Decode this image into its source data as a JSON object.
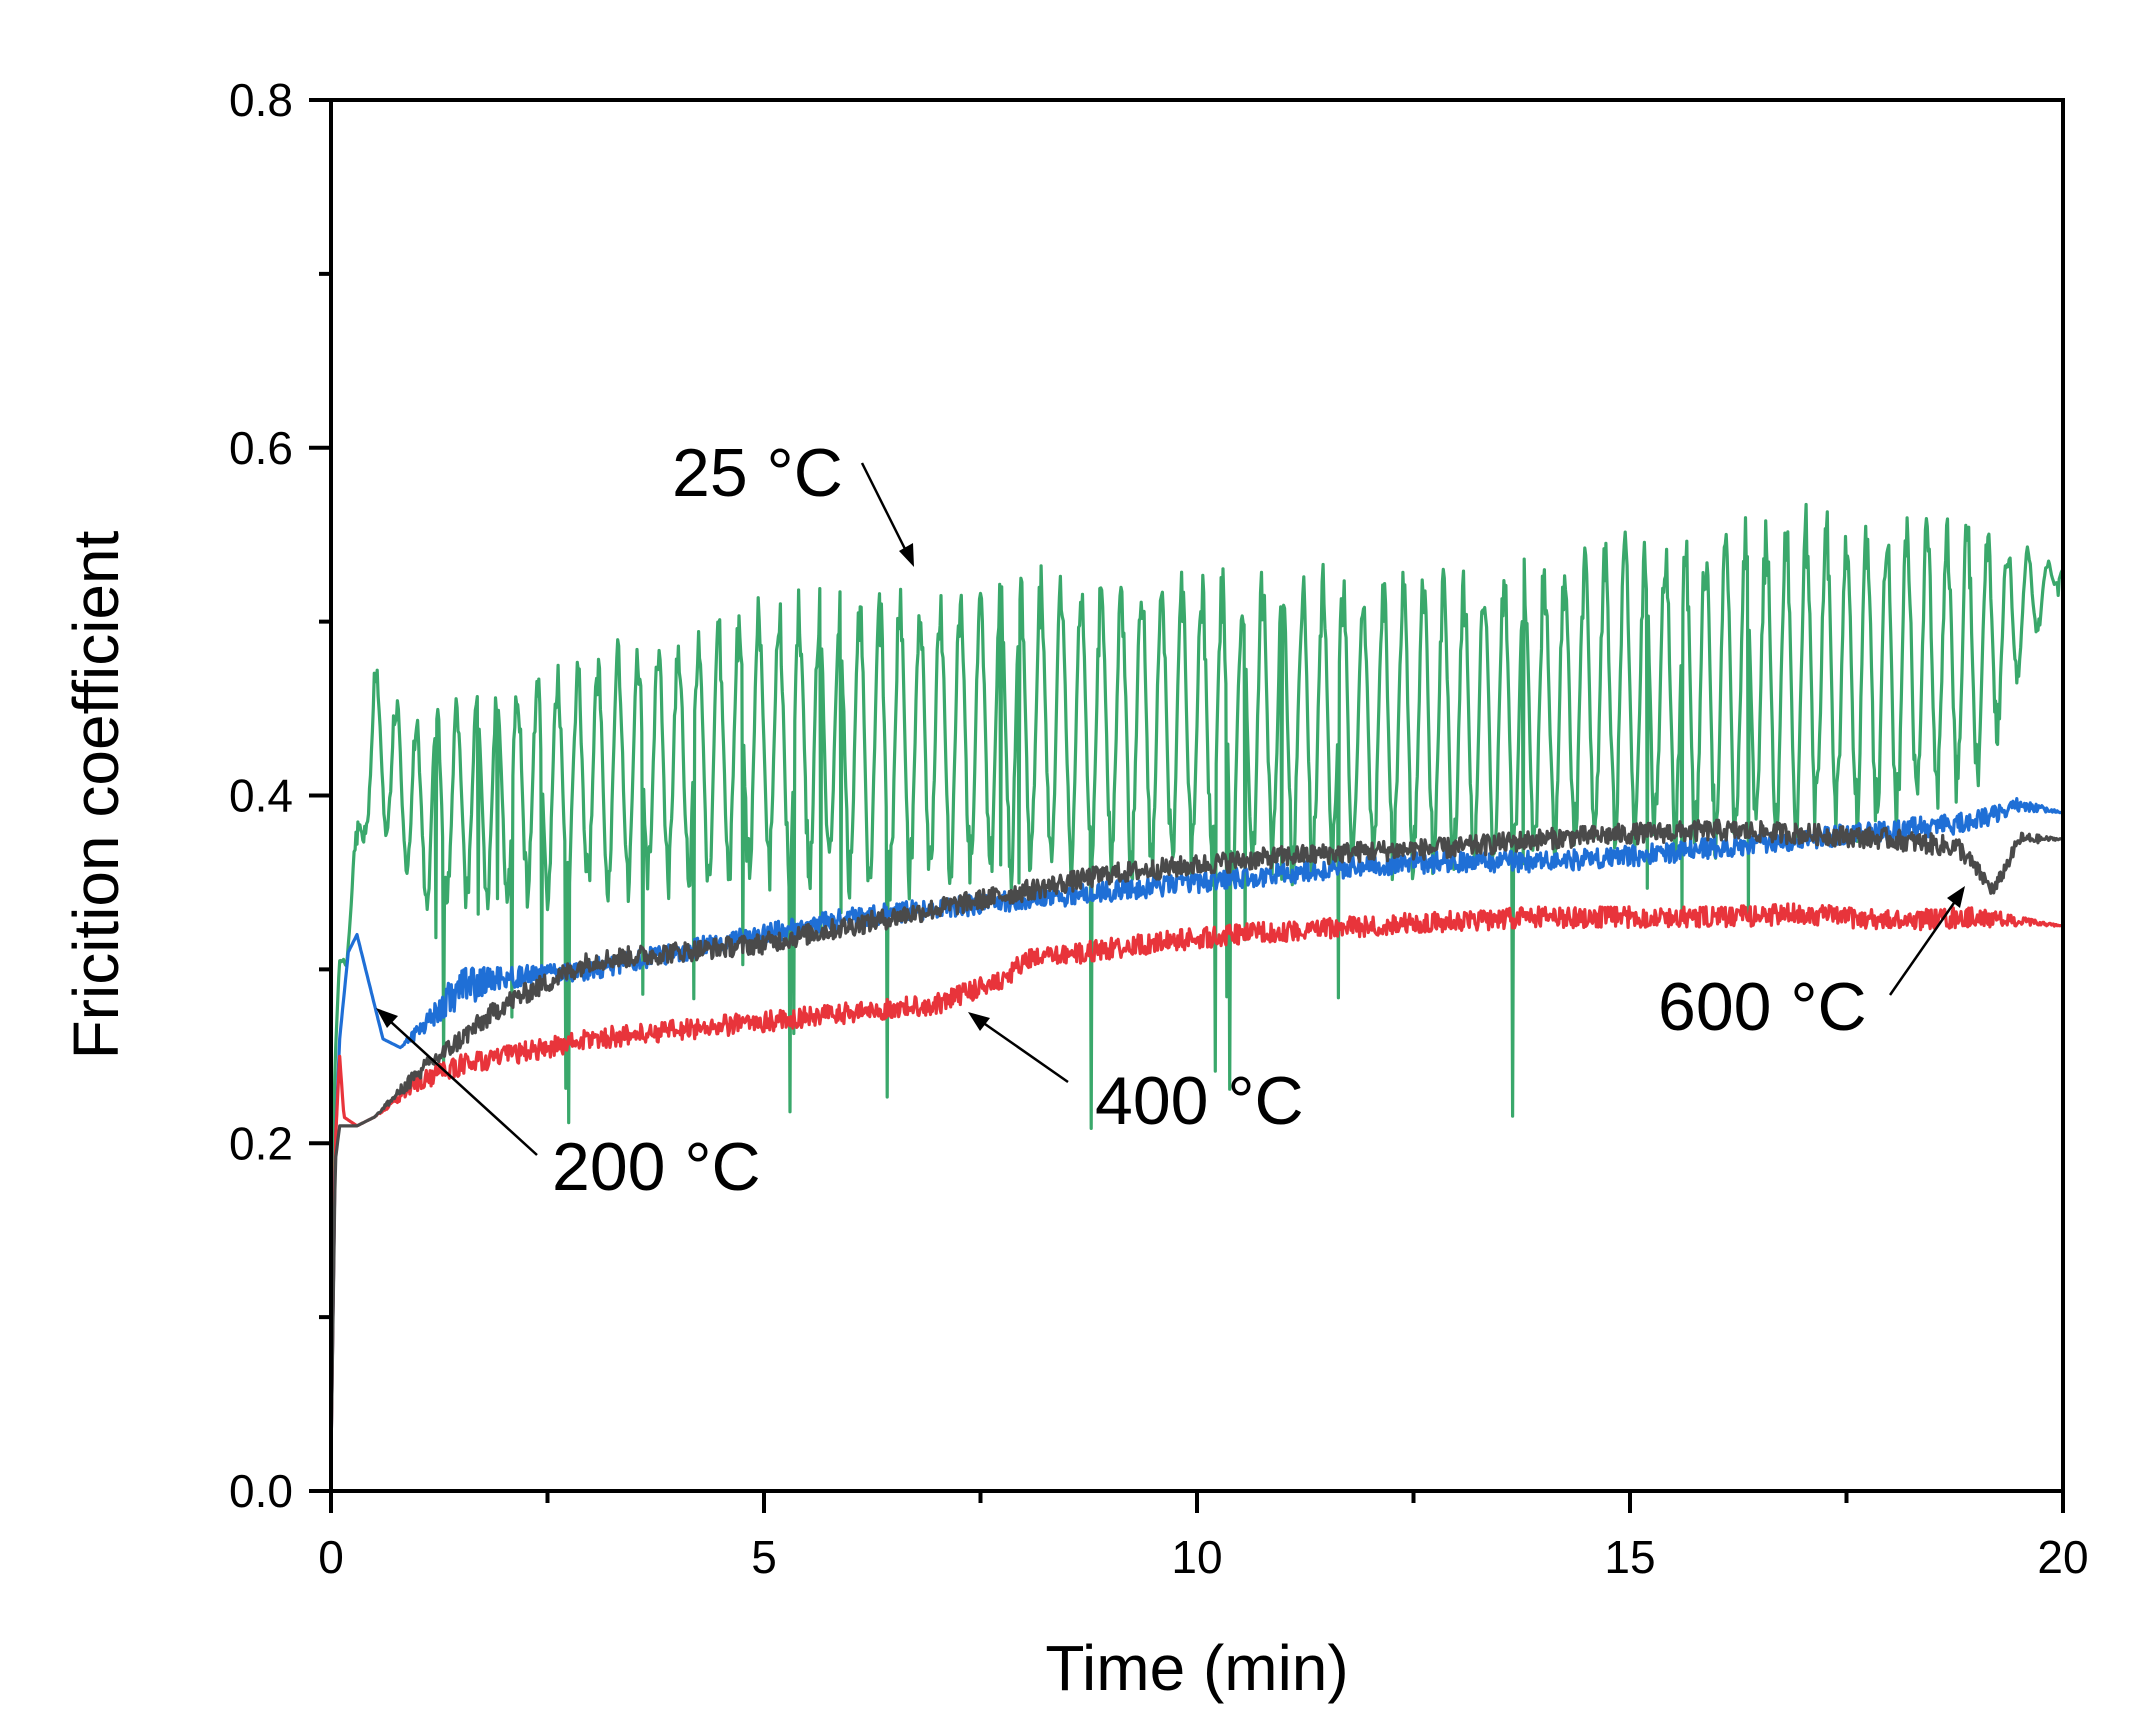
{
  "chart_data": {
    "type": "line",
    "title": "",
    "xlabel": "Time (min)",
    "ylabel": "Fricition coefficient",
    "xlim": [
      0,
      20
    ],
    "ylim": [
      0,
      0.8
    ],
    "x_ticks": [
      "0",
      "5",
      "10",
      "15",
      "20"
    ],
    "y_ticks": [
      "0.0",
      "0.2",
      "0.4",
      "0.6",
      "0.8"
    ],
    "grid": false,
    "series": [
      {
        "name": "25 °C",
        "color": "#3aa86b",
        "x": [
          0,
          0.05,
          0.1,
          0.2,
          0.3,
          0.4,
          0.5,
          1,
          2,
          3,
          4,
          5,
          6,
          7,
          8,
          9,
          10,
          11,
          12,
          13,
          14,
          15,
          16,
          17,
          18,
          19,
          20
        ],
        "y": [
          0.15,
          0.25,
          0.3,
          0.33,
          0.35,
          0.41,
          0.43,
          0.39,
          0.4,
          0.41,
          0.42,
          0.43,
          0.43,
          0.43,
          0.44,
          0.44,
          0.44,
          0.44,
          0.44,
          0.44,
          0.45,
          0.46,
          0.46,
          0.47,
          0.47,
          0.48,
          0.53
        ],
        "osc_amp": [
          0,
          0,
          0.01,
          0.02,
          0.03,
          0.03,
          0.04,
          0.05,
          0.055,
          0.06,
          0.065,
          0.07,
          0.075,
          0.075,
          0.075,
          0.075,
          0.075,
          0.075,
          0.075,
          0.075,
          0.075,
          0.075,
          0.08,
          0.08,
          0.08,
          0.07,
          0
        ]
      },
      {
        "name": "200 °C",
        "color": "#1f6fd6",
        "x": [
          0,
          0.05,
          0.1,
          0.2,
          0.3,
          0.4,
          0.6,
          0.8,
          1,
          1.5,
          2,
          3,
          4,
          5,
          6,
          7,
          8,
          9,
          10,
          11,
          12,
          13,
          14,
          15,
          16,
          17,
          18,
          19,
          19.5,
          20
        ],
        "y": [
          0.02,
          0.2,
          0.26,
          0.31,
          0.32,
          0.3,
          0.26,
          0.255,
          0.265,
          0.29,
          0.295,
          0.3,
          0.31,
          0.32,
          0.33,
          0.335,
          0.34,
          0.345,
          0.35,
          0.355,
          0.36,
          0.362,
          0.362,
          0.365,
          0.37,
          0.375,
          0.38,
          0.385,
          0.395,
          0.39
        ],
        "osc_amp": [
          0,
          0,
          0,
          0,
          0,
          0,
          0,
          0,
          0.005,
          0.012,
          0.006,
          0.006,
          0.006,
          0.006,
          0.006,
          0.006,
          0.006,
          0.006,
          0.006,
          0.006,
          0.006,
          0.006,
          0.006,
          0.006,
          0.006,
          0.006,
          0.006,
          0.006,
          0.004,
          0
        ]
      },
      {
        "name": "400 °C",
        "color": "#e8343b",
        "x": [
          0,
          0.05,
          0.1,
          0.15,
          0.3,
          0.5,
          1,
          1.5,
          2,
          3,
          4,
          5,
          6,
          7,
          7.5,
          7.8,
          8,
          9,
          10,
          11,
          12,
          13,
          14,
          15,
          16,
          17,
          18,
          19,
          20
        ],
        "y": [
          0.02,
          0.2,
          0.25,
          0.215,
          0.21,
          0.215,
          0.235,
          0.245,
          0.25,
          0.26,
          0.265,
          0.27,
          0.275,
          0.28,
          0.29,
          0.295,
          0.305,
          0.312,
          0.318,
          0.322,
          0.325,
          0.328,
          0.33,
          0.33,
          0.33,
          0.332,
          0.328,
          0.33,
          0.325
        ],
        "osc_amp": [
          0,
          0,
          0,
          0,
          0,
          0,
          0.005,
          0.006,
          0.006,
          0.006,
          0.006,
          0.006,
          0.006,
          0.006,
          0.006,
          0.006,
          0.006,
          0.006,
          0.006,
          0.006,
          0.006,
          0.006,
          0.006,
          0.006,
          0.006,
          0.006,
          0.006,
          0.006,
          0
        ]
      },
      {
        "name": "600 °C",
        "color": "#4a4a4a",
        "x": [
          0,
          0.05,
          0.1,
          0.3,
          0.5,
          1,
          1.5,
          2,
          3,
          4,
          5,
          6,
          7,
          8,
          9,
          10,
          11,
          12,
          13,
          14,
          15,
          16,
          17,
          18,
          18.8,
          19.2,
          19.5,
          20
        ],
        "y": [
          0.02,
          0.19,
          0.21,
          0.21,
          0.215,
          0.24,
          0.26,
          0.28,
          0.305,
          0.31,
          0.315,
          0.325,
          0.335,
          0.345,
          0.355,
          0.36,
          0.365,
          0.368,
          0.37,
          0.375,
          0.378,
          0.38,
          0.378,
          0.375,
          0.37,
          0.345,
          0.375,
          0.375
        ],
        "osc_amp": [
          0,
          0,
          0,
          0,
          0,
          0.005,
          0.006,
          0.006,
          0.006,
          0.006,
          0.006,
          0.006,
          0.006,
          0.006,
          0.006,
          0.006,
          0.006,
          0.006,
          0.006,
          0.006,
          0.006,
          0.006,
          0.006,
          0.006,
          0.006,
          0.004,
          0.004,
          0
        ]
      }
    ],
    "annotations": [
      {
        "text": "25 °C",
        "arrow_to": [
          6.7,
          0.535
        ]
      },
      {
        "text": "200 °C",
        "arrow_to": [
          0.55,
          0.275
        ]
      },
      {
        "text": "400 °C",
        "arrow_to": [
          7.5,
          0.275
        ]
      },
      {
        "text": "600 °C",
        "arrow_to": [
          19.1,
          0.345
        ]
      }
    ]
  }
}
